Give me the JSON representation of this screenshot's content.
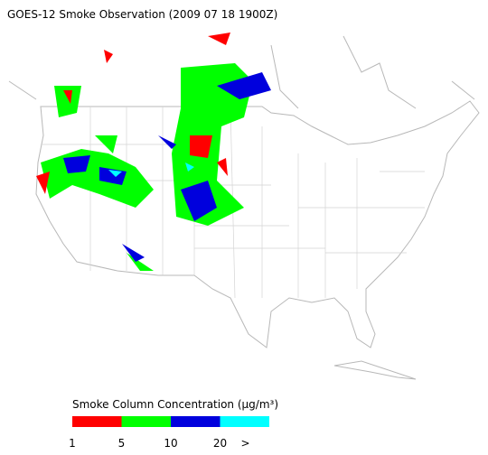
{
  "header": {
    "title": "GOES-12 Smoke Observation (2009 07 18  1900Z)"
  },
  "legend": {
    "title": "Smoke Column Concentration (μg/m³)",
    "colors": [
      "#ff0000",
      "#00ff00",
      "#0000dd",
      "#00ffff"
    ],
    "labels": [
      "1",
      "5",
      "10",
      "20",
      ">"
    ]
  }
}
